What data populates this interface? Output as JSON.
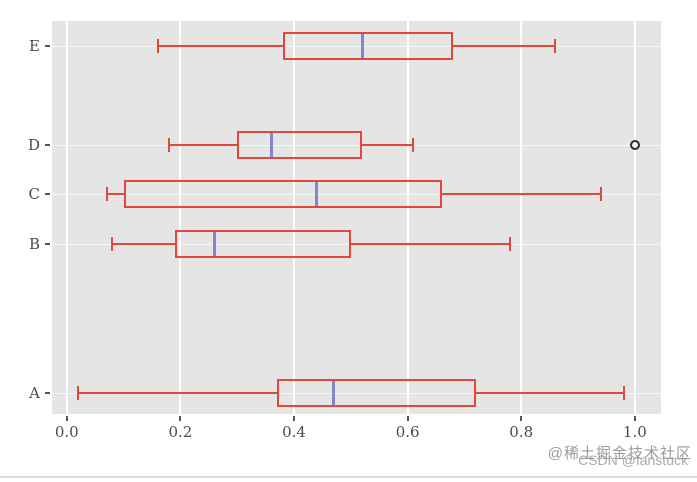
{
  "watermark": {
    "line1": "@稀土掘金技术社区",
    "line2": "CSDN @fanstuck"
  },
  "chart_data": {
    "type": "boxplot",
    "orientation": "horizontal",
    "title": "",
    "xlabel": "",
    "ylabel": "",
    "grid": true,
    "categories_top_to_bottom": [
      "E",
      "D",
      "C",
      "B",
      "A"
    ],
    "series": [
      {
        "category": "E",
        "position": 8,
        "whisker_low": 0.16,
        "q1": 0.38,
        "median": 0.52,
        "q3": 0.68,
        "whisker_high": 0.86,
        "outliers": []
      },
      {
        "category": "D",
        "position": 6,
        "whisker_low": 0.18,
        "q1": 0.3,
        "median": 0.36,
        "q3": 0.52,
        "whisker_high": 0.61,
        "outliers": [
          1.0
        ]
      },
      {
        "category": "C",
        "position": 5,
        "whisker_low": 0.07,
        "q1": 0.1,
        "median": 0.44,
        "q3": 0.66,
        "whisker_high": 0.94,
        "outliers": []
      },
      {
        "category": "B",
        "position": 4,
        "whisker_low": 0.08,
        "q1": 0.19,
        "median": 0.26,
        "q3": 0.5,
        "whisker_high": 0.78,
        "outliers": []
      },
      {
        "category": "A",
        "position": 1,
        "whisker_low": 0.02,
        "q1": 0.37,
        "median": 0.47,
        "q3": 0.72,
        "whisker_high": 0.98,
        "outliers": []
      }
    ],
    "x_ticks": [
      0.0,
      0.2,
      0.4,
      0.6,
      0.8,
      1.0
    ],
    "x_tick_labels": [
      "0.0",
      "0.2",
      "0.4",
      "0.6",
      "0.8",
      "1.0"
    ],
    "xlim": [
      -0.026,
      1.046
    ],
    "ylim": [
      0.57,
      8.5
    ],
    "box_width_units": 0.56,
    "style": {
      "panel_bg": "#e5e5e5",
      "grid_color": "#ffffff",
      "box_color": "#e2493d",
      "median_color": "#8585cc",
      "outlier_color": "#2b2b2b",
      "tick_color": "#555555",
      "tick_label_color": "#4a4a4a",
      "watermark_color": "#9b9b9b"
    }
  }
}
